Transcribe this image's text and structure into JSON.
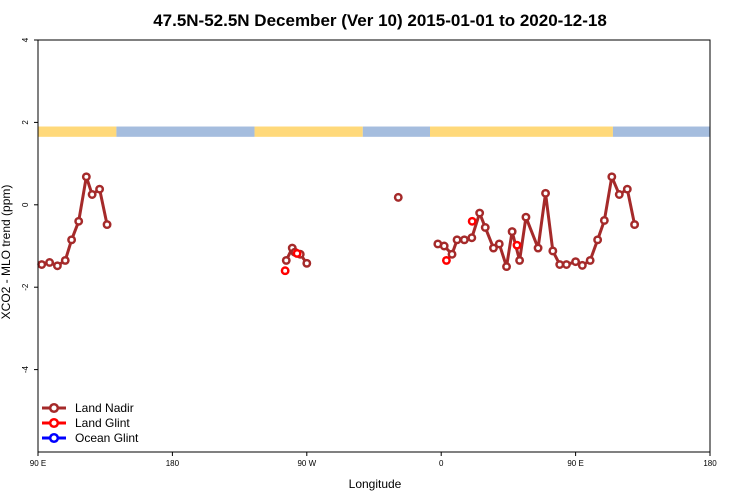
{
  "chart_data": {
    "type": "line",
    "title": "47.5N-52.5N December (Ver 10)   2015-01-01 to 2020-12-18",
    "xlabel": "Longitude",
    "ylabel": "XCO2 - MLO trend (ppm)",
    "xlim": [
      90,
      450
    ],
    "ylim": [
      -6.0,
      4.0
    ],
    "x_ticks": [
      {
        "value": 90,
        "label": "90 E"
      },
      {
        "value": 162,
        "label": "180"
      },
      {
        "value": 234,
        "label": "90 W"
      },
      {
        "value": 306,
        "label": "0"
      },
      {
        "value": 378,
        "label": "90 E"
      },
      {
        "value": 450,
        "label": "180"
      }
    ],
    "y_ticks": [
      {
        "value": 4,
        "label": "4"
      },
      {
        "value": 2,
        "label": "2"
      },
      {
        "value": 0,
        "label": "0"
      },
      {
        "value": -2,
        "label": "-2"
      },
      {
        "value": -4,
        "label": "-4"
      }
    ],
    "land_sea_band": {
      "y_range": [
        1.65,
        1.9
      ],
      "land_color": "#FFD97A",
      "ocean_color": "#A5BDDE",
      "segments": [
        {
          "start": 90,
          "end": 132,
          "kind": "land"
        },
        {
          "start": 132,
          "end": 206,
          "kind": "ocean"
        },
        {
          "start": 206,
          "end": 264,
          "kind": "land"
        },
        {
          "start": 264,
          "end": 300,
          "kind": "ocean"
        },
        {
          "start": 300,
          "end": 398,
          "kind": "land"
        },
        {
          "start": 398,
          "end": 450,
          "kind": "ocean"
        }
      ]
    },
    "series": [
      {
        "name": "Land Nadir",
        "color": "#A52A2A",
        "segments": [
          [
            [
              92.0,
              -1.45
            ],
            [
              96.2,
              -1.4
            ],
            [
              100.4,
              -1.48
            ],
            [
              104.6,
              -1.35
            ],
            [
              108.0,
              -0.85
            ],
            [
              111.8,
              -0.4
            ],
            [
              115.9,
              0.68
            ],
            [
              119.0,
              0.25
            ],
            [
              123.0,
              0.38
            ],
            [
              127.0,
              -0.48
            ]
          ],
          [
            [
              223.0,
              -1.35
            ],
            [
              226.2,
              -1.05
            ],
            [
              227.6,
              -1.15
            ],
            [
              230.5,
              -1.2
            ],
            [
              234.0,
              -1.42
            ]
          ],
          [
            [
              283.0,
              0.18
            ]
          ],
          [
            [
              304.2,
              -0.95
            ],
            [
              307.6,
              -1.0
            ],
            [
              311.8,
              -1.2
            ],
            [
              314.5,
              -0.85
            ],
            [
              318.4,
              -0.85
            ],
            [
              322.4,
              -0.8
            ],
            [
              326.6,
              -0.2
            ],
            [
              329.6,
              -0.55
            ],
            [
              334.0,
              -1.05
            ],
            [
              337.1,
              -0.95
            ],
            [
              341.0,
              -1.5
            ],
            [
              344.0,
              -0.65
            ],
            [
              348.0,
              -1.35
            ],
            [
              351.4,
              -0.3
            ],
            [
              357.9,
              -1.05
            ],
            [
              361.9,
              0.28
            ],
            [
              365.8,
              -1.12
            ],
            [
              369.5,
              -1.45
            ],
            [
              373.1,
              -1.45
            ],
            [
              378.0,
              -1.38
            ],
            [
              381.6,
              -1.47
            ],
            [
              385.8,
              -1.35
            ],
            [
              389.8,
              -0.85
            ],
            [
              393.4,
              -0.38
            ],
            [
              397.4,
              0.68
            ],
            [
              401.4,
              0.25
            ],
            [
              405.7,
              0.38
            ],
            [
              409.6,
              -0.48
            ]
          ]
        ]
      },
      {
        "name": "Land Glint",
        "color": "#FF0000",
        "segments": [
          [
            [
              222.4,
              -1.6
            ]
          ],
          [
            [
              228.8,
              -1.18
            ]
          ],
          [
            [
              308.8,
              -1.35
            ]
          ],
          [
            [
              322.6,
              -0.4
            ]
          ],
          [
            [
              346.6,
              -0.98
            ]
          ]
        ]
      },
      {
        "name": "Ocean Glint",
        "color": "#0000FF",
        "segments": []
      }
    ],
    "legend": {
      "position": "bottom-left",
      "entries": [
        "Land Nadir",
        "Land Glint",
        "Ocean Glint"
      ]
    }
  }
}
